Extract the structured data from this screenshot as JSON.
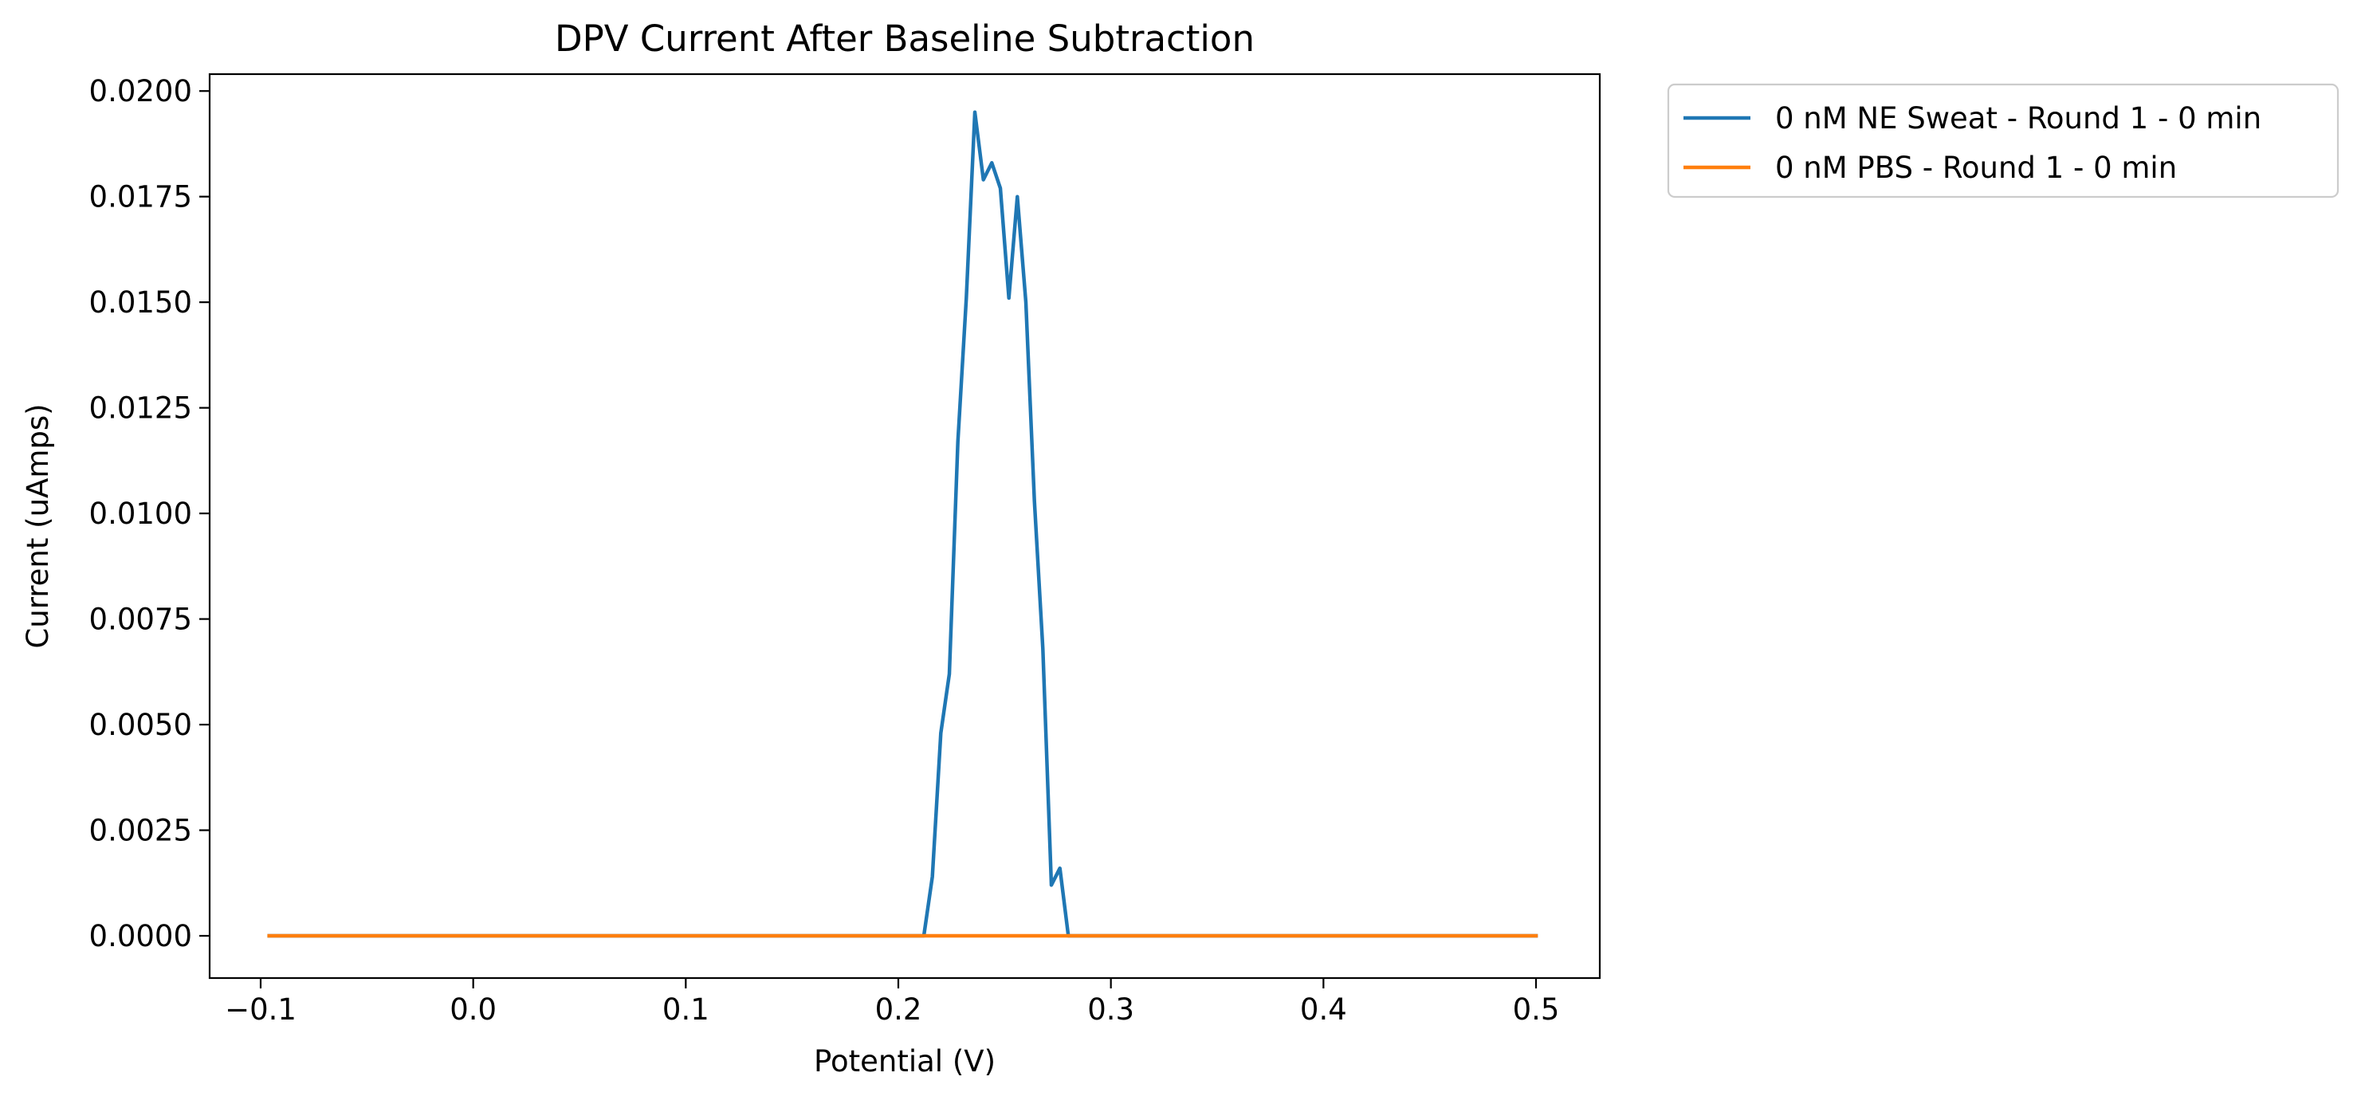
{
  "chart_data": {
    "type": "line",
    "title": "DPV Current After Baseline Subtraction",
    "xlabel": "Potential (V)",
    "ylabel": "Current (uAmps)",
    "xlim": [
      -0.124,
      0.53
    ],
    "ylim": [
      -0.001,
      0.0204
    ],
    "xticks": [
      -0.1,
      0.0,
      0.1,
      0.2,
      0.3,
      0.4,
      0.5
    ],
    "xtick_labels": [
      "−0.1",
      "0.0",
      "0.1",
      "0.2",
      "0.3",
      "0.4",
      "0.5"
    ],
    "yticks": [
      0.0,
      0.0025,
      0.005,
      0.0075,
      0.01,
      0.0125,
      0.015,
      0.0175,
      0.02
    ],
    "ytick_labels": [
      "0.0000",
      "0.0025",
      "0.0050",
      "0.0075",
      "0.0100",
      "0.0125",
      "0.0150",
      "0.0175",
      "0.0200"
    ],
    "grid": false,
    "legend_placement": "outside upper right",
    "series": [
      {
        "name": "0 nM NE Sweat - Round 1 - 0 min",
        "color": "#1f77b4",
        "x": [
          -0.096,
          0.0,
          0.1,
          0.2,
          0.212,
          0.216,
          0.22,
          0.224,
          0.228,
          0.232,
          0.236,
          0.24,
          0.244,
          0.248,
          0.252,
          0.256,
          0.26,
          0.264,
          0.268,
          0.272,
          0.276,
          0.28,
          0.3,
          0.4,
          0.5
        ],
        "y": [
          0.0,
          0.0,
          0.0,
          0.0,
          0.0,
          0.0014,
          0.0048,
          0.0062,
          0.0117,
          0.0151,
          0.0195,
          0.0179,
          0.0183,
          0.0177,
          0.0151,
          0.0175,
          0.015,
          0.0103,
          0.0068,
          0.0012,
          0.0016,
          0.0,
          0.0,
          0.0,
          0.0
        ]
      },
      {
        "name": "0 nM PBS - Round 1 - 0 min",
        "color": "#ff7f0e",
        "x": [
          -0.096,
          0.0,
          0.1,
          0.2,
          0.3,
          0.4,
          0.5
        ],
        "y": [
          0.0,
          0.0,
          0.0,
          0.0,
          0.0,
          0.0,
          0.0
        ]
      }
    ]
  }
}
